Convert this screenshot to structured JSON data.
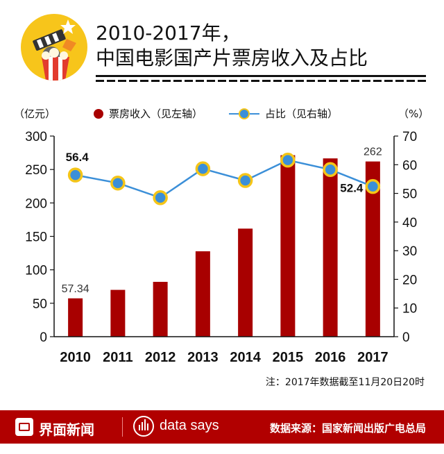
{
  "header": {
    "title_line1": "2010-2017年，",
    "title_line2": "中国电影国产片票房收入及占比",
    "logo_icon": "film-popcorn-icon"
  },
  "legend": {
    "bar_label": "票房收入（见左轴）",
    "line_label": "占比（见右轴）"
  },
  "axes": {
    "left_unit": "（亿元）",
    "right_unit": "（%）"
  },
  "chart_data": {
    "type": "bar+line",
    "categories": [
      "2010",
      "2011",
      "2012",
      "2013",
      "2014",
      "2015",
      "2016",
      "2017"
    ],
    "series": [
      {
        "name": "票房收入（见左轴）",
        "type": "bar",
        "axis": "left",
        "values": [
          57.34,
          70,
          82,
          127.7,
          161.6,
          271.4,
          266.6,
          262
        ],
        "data_labels": {
          "0": "57.34",
          "7": "262"
        }
      },
      {
        "name": "占比（见右轴）",
        "type": "line",
        "axis": "right",
        "values": [
          56.4,
          53.6,
          48.5,
          58.6,
          54.5,
          61.6,
          58.3,
          52.4
        ],
        "data_labels": {
          "0": "56.4",
          "7": "52.4"
        }
      }
    ],
    "y_left": {
      "min": 0,
      "max": 300,
      "ticks": [
        0,
        50,
        100,
        150,
        200,
        250,
        300
      ]
    },
    "y_right": {
      "min": 0,
      "max": 70,
      "ticks": [
        0,
        10,
        20,
        30,
        40,
        50,
        60,
        70
      ]
    },
    "colors": {
      "bar": "#a80000",
      "line": "#3b8fd8",
      "marker_ring": "#f5c518"
    },
    "legend_position": "top",
    "grid": false
  },
  "note": "注：2017年数据截至11月20日20时",
  "footer": {
    "brand": "界面新闻",
    "brand_icon": "jiemian-logo-icon",
    "data_says": "data says",
    "data_says_icon": "data-says-icon",
    "source": "数据来源：国家新闻出版广电总局"
  }
}
